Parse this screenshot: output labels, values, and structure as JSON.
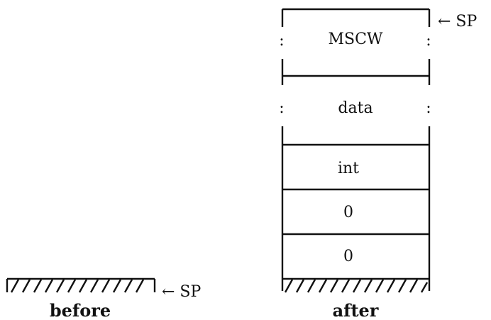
{
  "stack_after": {
    "cells": [
      "MSCW",
      "data",
      "int",
      "0",
      "0"
    ],
    "pointer_label": "← SP",
    "caption": "after"
  },
  "stack_before": {
    "pointer_label": "← SP",
    "caption": "before"
  },
  "colon_glyph": ":",
  "colors": {
    "ink": "#111111",
    "background": "#ffffff"
  }
}
